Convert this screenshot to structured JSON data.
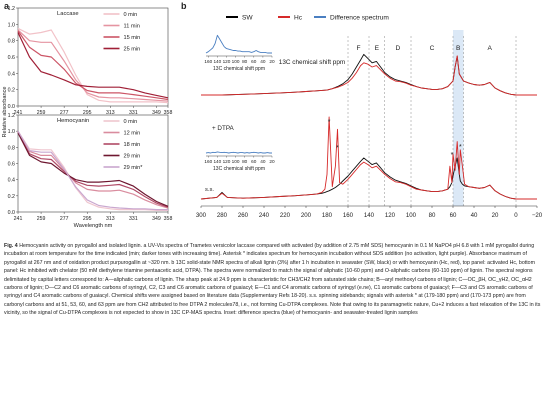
{
  "figure": {
    "panel_labels": [
      "a",
      "b"
    ],
    "caption_label": "Fig. 4",
    "caption_text": "Hemocyanin activity on pyrogallol and isolated lignin. a UV-Vis spectra of Trametes versicolor laccase compared with activated (by addition of 2.75 mM SDS) hemocyanin in 0.1 M NaPO4 pH 6.8 with 1 mM pyrogallol during incubation at room temperature for the time indicated (min; darker tones with increasing time). Asterisk * indicates spectrum for hemocyanin incubation without SDS addition (no activation, light purple). Absorbance maximum of pyrogallol at 267 nm and of oxidation product purpurogallin at ~320 nm. b 13C solid-state NMR spectra of alkali lignin (3%) after 1 h incubation in seawater (SW, black) or with hemocyanin (Hc, red), top panel: activated Hc, bottom panel: Hc inhibited with chelator (50 mM diethylene triamine pentaacetic acid, DTPA). The spectra were normalized to match the signal of aliphatic (10-60 ppm) and O-aliphatic carbons (60-110 ppm) of lignin. The spectral regions delimitated by capital letters correspond to: A—aliphatic carbons of lignin. The sharp peak at 24.9 ppm is characteristic for CH3/CH2 from saturated side chains; B—aryl methoxyl carbons of lignin; C—OC_βH, OC_γH2, OC_αH2 carbons of lignin; D—C2 and C6 aromatic carbons of syringyl, C2, C3 and C6 aromatic carbons of guaiacyl; E—C1 and C4 aromatic carbons of syringyl (e.ne), C1 aromatic carbons of guaiacyl; F—C3 and C5 aromatic carbons of syringyl and C4 aromatic carbons of guaiacyl. Chemical shifts were assigned based on literature data (Supplementary Refs 18-20). s.s. spinning sidebands; signals with asterisk * at (179-180 ppm) and (170-173 ppm) are from carbonyl carbons and at 51, 53, 60, and 63 ppm are from CH2 attributed to free DTPA 2 molecules78, i.e., not forming Cu-DTPA complexes. Note that owing to its paramagnetic nature, Cu+2 induces a fast relaxation of the 13C in its vicinity, so the signal of Cu-DTPA complexes is not expected to show in 13C CP-MAS spectra. Inset: difference spectra (blue) of hemocyanin- and seawater-treated lignin samples"
  },
  "chart_data": [
    {
      "id": "a-top",
      "type": "line",
      "title": "Laccase",
      "xlabel": "",
      "ylabel": "Relative absorbance",
      "ylim": [
        0.0,
        1.2
      ],
      "yticks": [
        "0.0",
        "0.2",
        "0.4",
        "0.6",
        "0.8",
        "1.0",
        "1.2"
      ],
      "xticks": [
        "241",
        "259",
        "277",
        "295",
        "313",
        "331",
        "349",
        "358"
      ],
      "series": [
        {
          "name": "0 min",
          "color": "#f2c2c8",
          "x": [
            241,
            250,
            259,
            267,
            277,
            286,
            295,
            304,
            313,
            320,
            331,
            340,
            349,
            358
          ],
          "values": [
            0.95,
            0.88,
            0.9,
            0.93,
            0.66,
            0.38,
            0.14,
            0.07,
            0.05,
            0.05,
            0.05,
            0.05,
            0.05,
            0.04
          ]
        },
        {
          "name": "11 min",
          "color": "#e594a1",
          "x": [
            241,
            250,
            259,
            267,
            277,
            286,
            295,
            304,
            313,
            320,
            331,
            340,
            349,
            358
          ],
          "values": [
            0.93,
            0.8,
            0.78,
            0.78,
            0.55,
            0.32,
            0.16,
            0.11,
            0.1,
            0.1,
            0.09,
            0.08,
            0.07,
            0.06
          ]
        },
        {
          "name": "15 min",
          "color": "#cc5566",
          "x": [
            241,
            250,
            259,
            267,
            277,
            286,
            295,
            304,
            313,
            320,
            331,
            340,
            349,
            358
          ],
          "values": [
            0.92,
            0.72,
            0.62,
            0.6,
            0.45,
            0.28,
            0.19,
            0.16,
            0.16,
            0.16,
            0.14,
            0.12,
            0.1,
            0.08
          ]
        },
        {
          "name": "25 min",
          "color": "#a01f36",
          "x": [
            241,
            250,
            259,
            267,
            277,
            286,
            295,
            304,
            313,
            320,
            331,
            340,
            349,
            358
          ],
          "values": [
            0.9,
            0.6,
            0.42,
            0.38,
            0.32,
            0.26,
            0.24,
            0.23,
            0.23,
            0.23,
            0.2,
            0.16,
            0.13,
            0.1
          ]
        }
      ]
    },
    {
      "id": "a-bottom",
      "type": "line",
      "title": "Hemocyanin",
      "xlabel": "Wavelength nm",
      "ylabel": "Relative absorbance",
      "ylim": [
        0.0,
        1.2
      ],
      "yticks": [
        "0.0",
        "0.2",
        "0.4",
        "0.6",
        "0.8",
        "1.0",
        "1.2"
      ],
      "xticks": [
        "241",
        "259",
        "277",
        "295",
        "313",
        "331",
        "349",
        "358"
      ],
      "series": [
        {
          "name": "0 min",
          "color": "#efc6cf",
          "x": [
            241,
            250,
            259,
            267,
            277,
            286,
            295,
            304,
            313,
            320,
            331,
            340,
            349,
            358
          ],
          "values": [
            1.0,
            0.78,
            0.77,
            0.77,
            0.55,
            0.3,
            0.12,
            0.06,
            0.04,
            0.03,
            0.03,
            0.03,
            0.02,
            0.02
          ]
        },
        {
          "name": "12 min",
          "color": "#d98c9e",
          "x": [
            241,
            250,
            259,
            267,
            277,
            286,
            295,
            304,
            313,
            320,
            331,
            340,
            349,
            358
          ],
          "values": [
            1.0,
            0.75,
            0.7,
            0.7,
            0.52,
            0.36,
            0.28,
            0.26,
            0.26,
            0.27,
            0.22,
            0.15,
            0.09,
            0.05
          ]
        },
        {
          "name": "18 min",
          "color": "#b04a66",
          "x": [
            241,
            250,
            259,
            267,
            277,
            286,
            295,
            304,
            313,
            320,
            331,
            340,
            349,
            358
          ],
          "values": [
            0.99,
            0.72,
            0.66,
            0.65,
            0.5,
            0.38,
            0.33,
            0.32,
            0.33,
            0.34,
            0.28,
            0.19,
            0.11,
            0.06
          ]
        },
        {
          "name": "29 min",
          "color": "#6e1730",
          "x": [
            241,
            250,
            259,
            267,
            277,
            286,
            295,
            304,
            313,
            320,
            331,
            340,
            349,
            358
          ],
          "values": [
            0.98,
            0.7,
            0.62,
            0.6,
            0.48,
            0.4,
            0.37,
            0.37,
            0.38,
            0.39,
            0.32,
            0.22,
            0.13,
            0.07
          ]
        },
        {
          "name": "29 min*",
          "color": "#c9a7cf",
          "x": [
            241,
            250,
            259,
            267,
            277,
            286,
            295,
            304,
            313,
            320,
            331,
            340,
            349,
            358
          ],
          "values": [
            1.0,
            0.76,
            0.74,
            0.74,
            0.53,
            0.31,
            0.15,
            0.08,
            0.06,
            0.05,
            0.04,
            0.04,
            0.03,
            0.03
          ]
        }
      ]
    },
    {
      "id": "b",
      "type": "line",
      "title": "",
      "xlabel": "13C chemical shift ppm",
      "ylabel": "",
      "xlim": [
        300,
        -20
      ],
      "xticks": [
        "300",
        "280",
        "260",
        "240",
        "220",
        "200",
        "180",
        "160",
        "140",
        "120",
        "100",
        "80",
        "60",
        "40",
        "20",
        "0",
        "−20"
      ],
      "legend": [
        "SW",
        "Hc",
        "Difference spectrum"
      ],
      "legend_colors": [
        "#000000",
        "#d62a2a",
        "#4a7fc1"
      ],
      "regions": [
        "F",
        "E",
        "D",
        "C",
        "B",
        "A"
      ],
      "region_bounds_ppm": [
        [
          160,
          140
        ],
        [
          140,
          125
        ],
        [
          125,
          100
        ],
        [
          100,
          60
        ],
        [
          60,
          50
        ],
        [
          50,
          0
        ]
      ],
      "highlight_region": "B",
      "annotations": [
        "+ DTPA",
        "s.s.",
        "*",
        "*",
        "*",
        "*"
      ],
      "inset_xlabel": "13C chemical shift ppm",
      "inset_xticks": [
        "160",
        "140",
        "120",
        "100",
        "80",
        "60",
        "40",
        "20"
      ],
      "top_panel": {
        "x": [
          300,
          280,
          260,
          240,
          225,
          210,
          200,
          190,
          180,
          175,
          170,
          165,
          160,
          156,
          152,
          148,
          145,
          141,
          137,
          133,
          129,
          125,
          120,
          115,
          110,
          105,
          100,
          95,
          90,
          85,
          80,
          75,
          70,
          65,
          60,
          58,
          56,
          54,
          50,
          45,
          40,
          35,
          30,
          25,
          20,
          15,
          10,
          5,
          0,
          -10,
          -20
        ],
        "series": [
          {
            "name": "SW",
            "values": [
              0,
              0,
              0.01,
              0.02,
              0.03,
              0.04,
              0.05,
              0.06,
              0.07,
              0.09,
              0.12,
              0.16,
              0.22,
              0.3,
              0.4,
              0.5,
              0.58,
              0.52,
              0.46,
              0.48,
              0.4,
              0.32,
              0.26,
              0.22,
              0.2,
              0.18,
              0.15,
              0.12,
              0.1,
              0.09,
              0.08,
              0.08,
              0.09,
              0.12,
              0.2,
              0.4,
              0.55,
              0.3,
              0.2,
              0.17,
              0.15,
              0.14,
              0.15,
              0.18,
              0.1,
              0.06,
              0.03,
              0.01,
              0,
              0,
              0
            ]
          },
          {
            "name": "Hc",
            "values": [
              0,
              0,
              0.01,
              0.02,
              0.03,
              0.04,
              0.05,
              0.06,
              0.07,
              0.09,
              0.11,
              0.14,
              0.18,
              0.24,
              0.32,
              0.42,
              0.46,
              0.44,
              0.4,
              0.42,
              0.36,
              0.3,
              0.24,
              0.2,
              0.19,
              0.17,
              0.14,
              0.12,
              0.1,
              0.09,
              0.08,
              0.08,
              0.09,
              0.12,
              0.2,
              0.4,
              0.56,
              0.3,
              0.2,
              0.17,
              0.15,
              0.14,
              0.15,
              0.18,
              0.1,
              0.06,
              0.03,
              0.01,
              0,
              0,
              0
            ]
          }
        ]
      },
      "bottom_panel": {
        "x": [
          300,
          285,
          280,
          275,
          260,
          240,
          225,
          210,
          200,
          190,
          185,
          182,
          180,
          178,
          175,
          172,
          170,
          168,
          165,
          160,
          156,
          152,
          148,
          145,
          141,
          137,
          133,
          129,
          125,
          120,
          115,
          110,
          105,
          100,
          95,
          90,
          85,
          80,
          75,
          70,
          65,
          63,
          61,
          60,
          58,
          56,
          54,
          53,
          51,
          49,
          45,
          40,
          35,
          30,
          25,
          20,
          15,
          10,
          5,
          0,
          -10,
          -20
        ],
        "series": [
          {
            "name": "SW",
            "values": [
              0,
              0.02,
              0.08,
              0.02,
              0.01,
              0.02,
              0.03,
              0.04,
              0.05,
              0.06,
              0.07,
              0.08,
              0.09,
              0.1,
              0.12,
              0.14,
              0.16,
              0.18,
              0.22,
              0.28,
              0.34,
              0.4,
              0.46,
              0.5,
              0.46,
              0.42,
              0.44,
              0.38,
              0.32,
              0.27,
              0.23,
              0.21,
              0.19,
              0.16,
              0.13,
              0.11,
              0.1,
              0.09,
              0.09,
              0.1,
              0.12,
              0.15,
              0.2,
              0.28,
              0.4,
              0.5,
              0.3,
              0.22,
              0.18,
              0.16,
              0.15,
              0.14,
              0.13,
              0.14,
              0.17,
              0.1,
              0.06,
              0.03,
              0.01,
              0,
              0,
              0
            ]
          },
          {
            "name": "Hc",
            "values": [
              0,
              0.02,
              0.07,
              0.02,
              0.01,
              0.02,
              0.03,
              0.04,
              0.05,
              0.06,
              0.08,
              0.12,
              0.3,
              1.0,
              0.15,
              0.4,
              0.85,
              0.2,
              0.18,
              0.24,
              0.3,
              0.36,
              0.42,
              0.45,
              0.42,
              0.38,
              0.4,
              0.35,
              0.3,
              0.25,
              0.21,
              0.2,
              0.18,
              0.15,
              0.12,
              0.11,
              0.1,
              0.09,
              0.09,
              0.1,
              0.12,
              0.4,
              0.2,
              0.55,
              0.35,
              0.7,
              0.3,
              0.6,
              0.4,
              0.18,
              0.15,
              0.14,
              0.13,
              0.14,
              0.17,
              0.1,
              0.06,
              0.03,
              0.01,
              0,
              0,
              0
            ]
          }
        ]
      },
      "inset_top": {
        "name": "Difference spectrum",
        "x": [
          165,
          160,
          155,
          150,
          145,
          140,
          135,
          130,
          125,
          120,
          115,
          110,
          105,
          100,
          95,
          90,
          85,
          80,
          75,
          70,
          65,
          60,
          55,
          50,
          45,
          40,
          35,
          30,
          25,
          20
        ],
        "values": [
          0.0,
          0.02,
          0.05,
          0.08,
          0.15,
          0.28,
          0.22,
          0.16,
          0.1,
          0.07,
          0.06,
          0.05,
          0.04,
          0.04,
          0.03,
          0.03,
          0.02,
          0.02,
          0.02,
          0.02,
          0.01,
          0.02,
          0.04,
          0.02,
          0.01,
          0.01,
          0.01,
          0.0,
          0.0,
          0.0
        ]
      },
      "inset_bottom": {
        "name": "Difference spectrum",
        "x": [
          165,
          160,
          155,
          150,
          145,
          140,
          135,
          130,
          125,
          120,
          115,
          110,
          105,
          100,
          95,
          90,
          85,
          80,
          75,
          70,
          65,
          60,
          55,
          50,
          45,
          40,
          35,
          30,
          25,
          20
        ],
        "values": [
          0.0,
          0.01,
          0.0,
          0.02,
          0.01,
          0.03,
          0.02,
          0.01,
          0.02,
          0.01,
          0.0,
          0.01,
          0.02,
          0.01,
          0.0,
          0.01,
          0.01,
          0.0,
          0.01,
          0.0,
          0.01,
          0.02,
          0.01,
          0.0,
          0.01,
          0.0,
          0.0,
          0.01,
          0.0,
          0.0
        ]
      }
    }
  ]
}
